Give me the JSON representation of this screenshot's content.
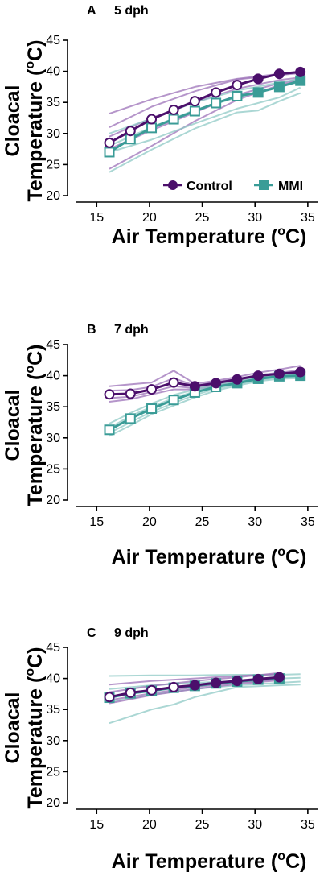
{
  "colors": {
    "control": "#4B0F6B",
    "control_light": "#9C72B8",
    "mmi": "#3A9C97",
    "mmi_light": "#8FC9C5"
  },
  "chart_data": [
    {
      "type": "line",
      "panel": "A",
      "title": "5 dph",
      "xlabel": "Air Temperature",
      "xlabel_sup": "o",
      "xlabel_unit": "C)",
      "ylabel_line1": "Cloacal",
      "ylabel_line2": "Temperature (",
      "ylabel_sup": "o",
      "ylabel_unit": "C)",
      "xlim": [
        13,
        36
      ],
      "ylim": [
        20,
        45
      ],
      "xticks": [
        "15",
        "20",
        "25",
        "30",
        "35"
      ],
      "yticks": [
        "20",
        "25",
        "30",
        "35",
        "40",
        "45"
      ],
      "legend": {
        "position": "bottom-right",
        "entries": [
          "Control",
          "MMI"
        ]
      },
      "series": [
        {
          "name": "Control",
          "marker": "circle",
          "x": [
            16.2,
            18.2,
            20.2,
            22.3,
            24.3,
            26.3,
            28.3,
            30.3,
            32.3,
            34.3
          ],
          "y": [
            28.5,
            30.4,
            32.3,
            33.8,
            35.2,
            36.6,
            37.8,
            38.8,
            39.6,
            39.9
          ],
          "filled": [
            false,
            false,
            false,
            false,
            false,
            false,
            false,
            true,
            true,
            true
          ]
        },
        {
          "name": "MMI",
          "marker": "square",
          "x": [
            16.2,
            18.2,
            20.2,
            22.3,
            24.3,
            26.3,
            28.3,
            30.3,
            32.3,
            34.3
          ],
          "y": [
            27.0,
            29.1,
            30.9,
            32.3,
            33.6,
            34.9,
            36.0,
            36.6,
            37.5,
            38.5
          ],
          "filled": [
            false,
            false,
            false,
            false,
            false,
            false,
            false,
            true,
            true,
            true
          ]
        }
      ],
      "individuals": [
        {
          "group": "Control",
          "x": [
            16.2,
            20.2,
            24.3,
            28.3,
            32.3,
            34.3
          ],
          "y": [
            33.2,
            35.5,
            37.5,
            38.8,
            39.6,
            39.9
          ]
        },
        {
          "group": "Control",
          "x": [
            16.2,
            20.2,
            24.3,
            28.3,
            32.3,
            34.3
          ],
          "y": [
            31.0,
            34.3,
            36.8,
            38.7,
            39.4,
            39.7
          ]
        },
        {
          "group": "Control",
          "x": [
            16.2,
            20.2,
            24.3,
            28.3,
            32.3,
            34.3
          ],
          "y": [
            29.5,
            32.5,
            35.0,
            37.2,
            38.6,
            39.0
          ]
        },
        {
          "group": "Control",
          "x": [
            16.2,
            20.2,
            24.3,
            28.3,
            32.3,
            34.3
          ],
          "y": [
            27.5,
            30.5,
            33.4,
            36.2,
            38.1,
            38.8
          ]
        },
        {
          "group": "Control",
          "x": [
            16.2,
            20.2,
            24.3,
            28.3,
            32.3,
            34.3
          ],
          "y": [
            24.3,
            28.0,
            32.0,
            35.4,
            37.8,
            38.6
          ]
        },
        {
          "group": "MMI",
          "x": [
            16.2,
            20.2,
            24.3,
            28.3,
            32.3,
            34.3
          ],
          "y": [
            30.0,
            32.4,
            35.0,
            36.9,
            38.2,
            38.8
          ]
        },
        {
          "group": "MMI",
          "x": [
            16.2,
            20.2,
            24.3,
            28.3,
            32.3,
            34.3
          ],
          "y": [
            28.0,
            31.0,
            33.8,
            35.8,
            37.5,
            38.3
          ]
        },
        {
          "group": "MMI",
          "x": [
            16.2,
            20.2,
            24.3,
            28.3,
            32.3,
            34.3
          ],
          "y": [
            27.0,
            29.0,
            31.6,
            34.0,
            35.8,
            37.4
          ]
        },
        {
          "group": "MMI",
          "x": [
            16.2,
            20.2,
            24.3,
            28.3,
            30.3,
            32.3,
            34.3
          ],
          "y": [
            23.8,
            27.4,
            30.8,
            33.4,
            33.7,
            35.2,
            36.5
          ]
        }
      ]
    },
    {
      "type": "line",
      "panel": "B",
      "title": "7 dph",
      "xlabel": "Air Temperature",
      "xlabel_sup": "o",
      "xlabel_unit": "C)",
      "ylabel_line1": "Cloacal",
      "ylabel_line2": "Temperature (",
      "ylabel_sup": "o",
      "ylabel_unit": "C)",
      "xlim": [
        13,
        36
      ],
      "ylim": [
        20,
        45
      ],
      "xticks": [
        "15",
        "20",
        "25",
        "30",
        "35"
      ],
      "yticks": [
        "20",
        "25",
        "30",
        "35",
        "40",
        "45"
      ],
      "series": [
        {
          "name": "Control",
          "marker": "circle",
          "x": [
            16.2,
            18.2,
            20.2,
            22.3,
            24.3,
            26.3,
            28.3,
            30.3,
            32.3,
            34.3
          ],
          "y": [
            37.0,
            37.1,
            37.8,
            38.9,
            38.3,
            38.8,
            39.4,
            40.0,
            40.3,
            40.6
          ],
          "filled": [
            false,
            false,
            false,
            false,
            true,
            true,
            true,
            true,
            true,
            true
          ]
        },
        {
          "name": "MMI",
          "marker": "square",
          "x": [
            16.2,
            18.2,
            20.2,
            22.3,
            24.3,
            26.3,
            28.3,
            30.3,
            32.3,
            34.3
          ],
          "y": [
            31.3,
            33.1,
            34.7,
            36.1,
            37.3,
            38.2,
            38.8,
            39.5,
            39.9,
            40.0
          ],
          "filled": [
            false,
            false,
            false,
            false,
            false,
            false,
            true,
            true,
            true,
            true
          ]
        }
      ],
      "individuals": [
        {
          "group": "Control",
          "x": [
            16.2,
            18.2,
            20.2,
            22.3,
            24.3,
            26.3,
            28.3,
            30.3,
            32.3,
            34.3
          ],
          "y": [
            38.3,
            38.6,
            38.9,
            40.8,
            38.7,
            39.2,
            39.8,
            40.5,
            41.0,
            41.6
          ]
        },
        {
          "group": "Control",
          "x": [
            16.2,
            18.2,
            20.2,
            22.3,
            24.3,
            26.3,
            28.3,
            30.3,
            32.3,
            34.3
          ],
          "y": [
            37.6,
            37.7,
            38.2,
            39.6,
            38.4,
            39.0,
            39.5,
            40.1,
            40.5,
            40.9
          ]
        },
        {
          "group": "Control",
          "x": [
            16.2,
            18.2,
            20.2,
            22.3,
            24.3,
            26.3,
            28.3,
            30.3,
            32.3,
            34.3
          ],
          "y": [
            36.4,
            36.6,
            37.4,
            38.3,
            38.0,
            38.5,
            39.1,
            39.7,
            40.1,
            40.3
          ]
        },
        {
          "group": "Control",
          "x": [
            16.2,
            18.2,
            20.2,
            22.3,
            24.3,
            26.3,
            28.3,
            30.3,
            32.3,
            34.3
          ],
          "y": [
            35.8,
            36.2,
            37.0,
            37.8,
            37.8,
            38.3,
            38.9,
            39.5,
            39.8,
            40.0
          ]
        },
        {
          "group": "MMI",
          "x": [
            16.2,
            18.2,
            20.2,
            22.3,
            24.3,
            26.3,
            28.3,
            30.3,
            32.3,
            34.3
          ],
          "y": [
            32.3,
            34.0,
            35.5,
            36.9,
            37.8,
            38.6,
            39.1,
            39.8,
            40.2,
            40.4
          ]
        },
        {
          "group": "MMI",
          "x": [
            16.2,
            18.2,
            20.2,
            22.3,
            24.3,
            26.3,
            28.3,
            30.3,
            32.3,
            34.3
          ],
          "y": [
            31.6,
            33.5,
            35.0,
            36.4,
            37.5,
            38.3,
            38.9,
            39.6,
            40.0,
            40.1
          ]
        },
        {
          "group": "MMI",
          "x": [
            16.2,
            18.2,
            20.2,
            22.3,
            24.3,
            26.3,
            28.3,
            30.3,
            32.3,
            34.3
          ],
          "y": [
            30.8,
            32.5,
            34.2,
            35.6,
            36.9,
            37.9,
            38.6,
            39.3,
            39.7,
            39.8
          ]
        },
        {
          "group": "MMI",
          "x": [
            16.2,
            18.2,
            20.2,
            22.3,
            24.3,
            26.3,
            28.3,
            30.3,
            32.3,
            34.3
          ],
          "y": [
            30.3,
            32.0,
            33.8,
            35.2,
            36.5,
            37.6,
            38.4,
            39.1,
            39.5,
            39.6
          ]
        }
      ]
    },
    {
      "type": "line",
      "panel": "C",
      "title": "9 dph",
      "xlabel": "Air Temperature",
      "xlabel_sup": "o",
      "xlabel_unit": "C)",
      "ylabel_line1": "Cloacal",
      "ylabel_line2": "Temperature (",
      "ylabel_sup": "o",
      "ylabel_unit": "C)",
      "xlim": [
        13,
        36
      ],
      "ylim": [
        20,
        45
      ],
      "xticks": [
        "15",
        "20",
        "25",
        "30",
        "35"
      ],
      "yticks": [
        "20",
        "25",
        "30",
        "35",
        "40",
        "45"
      ],
      "series": [
        {
          "name": "Control",
          "marker": "circle",
          "x": [
            16.2,
            18.2,
            20.2,
            22.3,
            24.3,
            26.3,
            28.3,
            30.3,
            32.3
          ],
          "y": [
            37.0,
            37.7,
            38.1,
            38.6,
            38.9,
            39.3,
            39.6,
            39.9,
            40.2
          ],
          "filled": [
            false,
            false,
            false,
            false,
            true,
            true,
            true,
            true,
            true
          ]
        },
        {
          "name": "MMI",
          "marker": "square",
          "x": [
            16.2,
            18.2,
            20.2,
            22.3,
            24.3,
            26.3,
            28.3,
            30.3,
            32.3
          ],
          "y": [
            36.9,
            37.6,
            38.0,
            38.5,
            38.8,
            39.2,
            39.5,
            39.8,
            40.0
          ],
          "filled": [
            false,
            false,
            false,
            false,
            true,
            true,
            true,
            true,
            true
          ]
        }
      ],
      "individuals": [
        {
          "group": "MMI",
          "x": [
            16.2,
            20.2,
            24.3,
            28.3,
            32.3,
            34.3
          ],
          "y": [
            40.4,
            40.5,
            40.5,
            40.6,
            40.6,
            40.7
          ]
        },
        {
          "group": "MMI",
          "x": [
            16.2,
            20.2,
            24.3,
            28.3,
            32.3,
            34.3
          ],
          "y": [
            38.3,
            38.9,
            39.3,
            39.6,
            40.0,
            40.1
          ]
        },
        {
          "group": "MMI",
          "x": [
            16.2,
            20.2,
            24.3,
            28.3,
            32.3,
            34.3
          ],
          "y": [
            36.2,
            37.4,
            38.3,
            38.9,
            39.3,
            39.5
          ]
        },
        {
          "group": "MMI",
          "x": [
            16.2,
            20.2,
            22.3,
            24.3,
            28.3,
            32.3,
            34.3
          ],
          "y": [
            32.8,
            35.0,
            35.8,
            37.0,
            38.6,
            38.9,
            39.0
          ]
        },
        {
          "group": "Control",
          "x": [
            16.2,
            20.2,
            24.3,
            28.3,
            32.3
          ],
          "y": [
            37.8,
            38.8,
            39.6,
            40.2,
            40.9
          ]
        },
        {
          "group": "Control",
          "x": [
            16.2,
            20.2,
            24.3,
            28.3,
            32.3
          ],
          "y": [
            36.5,
            37.6,
            38.6,
            39.3,
            39.9
          ]
        },
        {
          "group": "Control",
          "x": [
            16.2,
            20.2,
            24.3,
            28.3,
            32.3
          ],
          "y": [
            36.0,
            37.3,
            38.3,
            39.1,
            39.7
          ]
        },
        {
          "group": "Control",
          "x": [
            16.2,
            20.2,
            24.3,
            28.3,
            32.3
          ],
          "y": [
            39.0,
            39.6,
            40.0,
            40.4,
            40.7
          ]
        }
      ]
    }
  ]
}
